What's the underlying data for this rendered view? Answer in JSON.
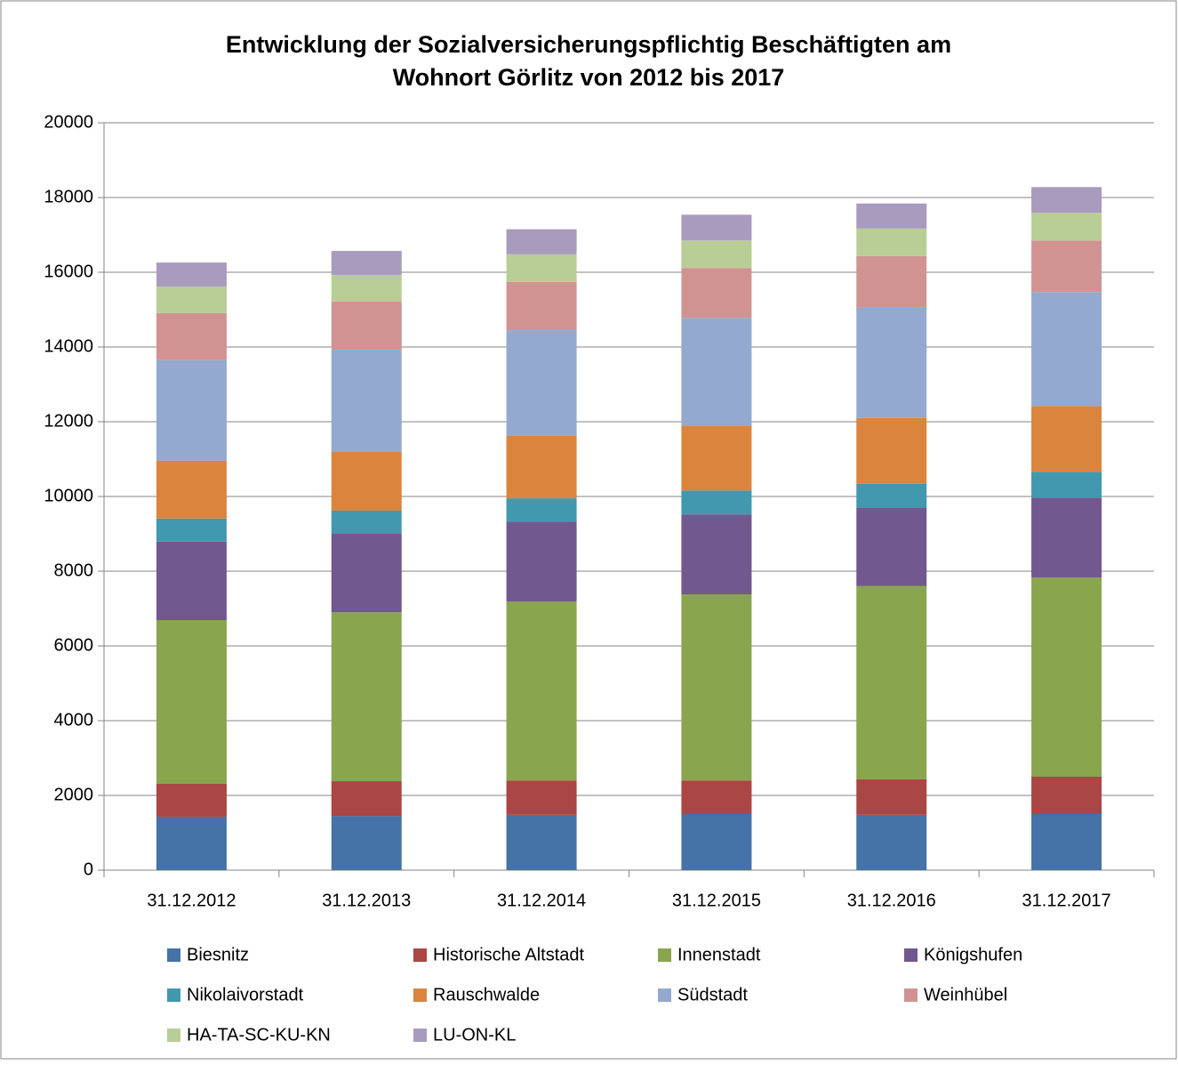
{
  "chart_data": {
    "type": "stacked_bar",
    "title": [
      "Entwicklung der Sozialversicherungspflichtig Beschäftigten am",
      "Wohnort Görlitz von 2012 bis 2017"
    ],
    "categories": [
      "31.12.2012",
      "31.12.2013",
      "31.12.2014",
      "31.12.2015",
      "31.12.2016",
      "31.12.2017"
    ],
    "series": [
      {
        "name": "Biesnitz",
        "color": "#4572a7",
        "values": [
          1430,
          1450,
          1480,
          1500,
          1480,
          1500
        ]
      },
      {
        "name": "Historische Altstadt",
        "color": "#aa4643",
        "values": [
          880,
          930,
          920,
          900,
          950,
          1000
        ]
      },
      {
        "name": "Innenstadt",
        "color": "#89a54e",
        "values": [
          4380,
          4520,
          4790,
          4980,
          5170,
          5330
        ]
      },
      {
        "name": "Königshufen",
        "color": "#71588f",
        "values": [
          2100,
          2100,
          2140,
          2140,
          2100,
          2140
        ]
      },
      {
        "name": "Nikolaivorstadt",
        "color": "#4198af",
        "values": [
          620,
          620,
          620,
          640,
          640,
          690
        ]
      },
      {
        "name": "Rauschwalde",
        "color": "#db843d",
        "values": [
          1550,
          1570,
          1670,
          1740,
          1760,
          1760
        ]
      },
      {
        "name": "Südstadt",
        "color": "#93a9cf",
        "values": [
          2690,
          2740,
          2830,
          2880,
          2950,
          3050
        ]
      },
      {
        "name": "Weinhübel",
        "color": "#d19392",
        "values": [
          1260,
          1290,
          1290,
          1330,
          1380,
          1380
        ]
      },
      {
        "name": "HA-TA-SC-KU-KN",
        "color": "#b9cd96",
        "values": [
          710,
          710,
          740,
          740,
          740,
          740
        ]
      },
      {
        "name": "LU-ON-KL",
        "color": "#a99bbd",
        "values": [
          640,
          640,
          670,
          690,
          670,
          690
        ]
      }
    ],
    "ylim": [
      0,
      20000
    ],
    "yticks": [
      0,
      2000,
      4000,
      6000,
      8000,
      10000,
      12000,
      14000,
      16000,
      18000,
      20000
    ],
    "grid": true,
    "legend": "bottom"
  }
}
